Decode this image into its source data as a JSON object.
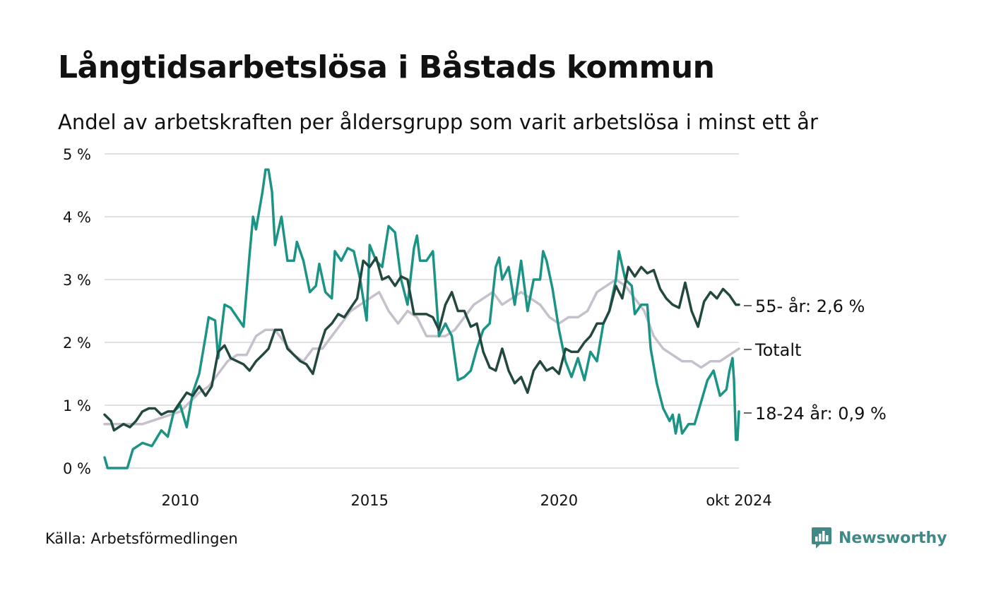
{
  "header": {
    "title": "Långtidsarbetslösa i Båstads kommun",
    "subtitle": "Andel av arbetskraften per åldersgrupp som varit arbetslösa i minst ett år"
  },
  "footer": {
    "source": "Källa: Arbetsförmedlingen",
    "brand": "Newsworthy"
  },
  "chart_data": {
    "type": "line",
    "title": "Långtidsarbetslösa i Båstads kommun",
    "subtitle": "Andel av arbetskraften per åldersgrupp som varit arbetslösa i minst ett år",
    "xlabel": "",
    "ylabel": "",
    "xlim": [
      2008.0,
      2024.75
    ],
    "ylim": [
      0,
      5
    ],
    "y_ticks": [
      {
        "value": 0,
        "label": "0 %"
      },
      {
        "value": 1,
        "label": "1 %"
      },
      {
        "value": 2,
        "label": "2 %"
      },
      {
        "value": 3,
        "label": "3 %"
      },
      {
        "value": 4,
        "label": "4 %"
      },
      {
        "value": 5,
        "label": "5 %"
      }
    ],
    "x_ticks": [
      {
        "value": 2010,
        "label": "2010"
      },
      {
        "value": 2015,
        "label": "2015"
      },
      {
        "value": 2020,
        "label": "2020"
      },
      {
        "value": 2024.75,
        "label": "okt 2024"
      }
    ],
    "grid": true,
    "series": [
      {
        "key": "totalt",
        "name": "Totalt",
        "end_label": "Totalt",
        "color": "#c5c0cc",
        "points": [
          [
            2008.0,
            0.7
          ],
          [
            2008.5,
            0.7
          ],
          [
            2009.0,
            0.7
          ],
          [
            2009.5,
            0.8
          ],
          [
            2010.0,
            0.9
          ],
          [
            2010.5,
            1.2
          ],
          [
            2010.75,
            1.3
          ],
          [
            2011.0,
            1.5
          ],
          [
            2011.25,
            1.7
          ],
          [
            2011.5,
            1.8
          ],
          [
            2011.75,
            1.8
          ],
          [
            2012.0,
            2.1
          ],
          [
            2012.25,
            2.2
          ],
          [
            2012.5,
            2.2
          ],
          [
            2012.75,
            2.0
          ],
          [
            2013.0,
            1.8
          ],
          [
            2013.25,
            1.7
          ],
          [
            2013.5,
            1.9
          ],
          [
            2013.75,
            1.9
          ],
          [
            2014.0,
            2.1
          ],
          [
            2014.25,
            2.3
          ],
          [
            2014.5,
            2.5
          ],
          [
            2014.75,
            2.6
          ],
          [
            2015.0,
            2.7
          ],
          [
            2015.25,
            2.8
          ],
          [
            2015.5,
            2.5
          ],
          [
            2015.75,
            2.3
          ],
          [
            2016.0,
            2.5
          ],
          [
            2016.25,
            2.4
          ],
          [
            2016.5,
            2.1
          ],
          [
            2016.75,
            2.1
          ],
          [
            2017.0,
            2.1
          ],
          [
            2017.25,
            2.2
          ],
          [
            2017.5,
            2.4
          ],
          [
            2017.75,
            2.6
          ],
          [
            2018.0,
            2.7
          ],
          [
            2018.25,
            2.8
          ],
          [
            2018.5,
            2.6
          ],
          [
            2018.75,
            2.7
          ],
          [
            2019.0,
            2.8
          ],
          [
            2019.25,
            2.7
          ],
          [
            2019.5,
            2.6
          ],
          [
            2019.75,
            2.4
          ],
          [
            2020.0,
            2.3
          ],
          [
            2020.25,
            2.4
          ],
          [
            2020.5,
            2.4
          ],
          [
            2020.75,
            2.5
          ],
          [
            2021.0,
            2.8
          ],
          [
            2021.25,
            2.9
          ],
          [
            2021.5,
            3.0
          ],
          [
            2021.75,
            2.9
          ],
          [
            2022.0,
            2.7
          ],
          [
            2022.25,
            2.5
          ],
          [
            2022.5,
            2.1
          ],
          [
            2022.75,
            1.9
          ],
          [
            2023.0,
            1.8
          ],
          [
            2023.25,
            1.7
          ],
          [
            2023.5,
            1.7
          ],
          [
            2023.75,
            1.6
          ],
          [
            2024.0,
            1.7
          ],
          [
            2024.25,
            1.7
          ],
          [
            2024.5,
            1.8
          ],
          [
            2024.75,
            1.9
          ]
        ]
      },
      {
        "key": "age_18_24",
        "name": "18-24 år",
        "end_label": "18-24 år: 0,9 %",
        "color": "#1b9485",
        "points": [
          [
            2008.0,
            0.17
          ],
          [
            2008.08,
            0.0
          ],
          [
            2008.5,
            0.0
          ],
          [
            2008.6,
            0.0
          ],
          [
            2008.75,
            0.3
          ],
          [
            2009.0,
            0.4
          ],
          [
            2009.25,
            0.35
          ],
          [
            2009.5,
            0.6
          ],
          [
            2009.67,
            0.5
          ],
          [
            2009.83,
            0.9
          ],
          [
            2010.0,
            1.0
          ],
          [
            2010.17,
            0.65
          ],
          [
            2010.33,
            1.2
          ],
          [
            2010.5,
            1.5
          ],
          [
            2010.67,
            2.1
          ],
          [
            2010.75,
            2.4
          ],
          [
            2010.92,
            2.35
          ],
          [
            2011.0,
            1.75
          ],
          [
            2011.17,
            2.6
          ],
          [
            2011.33,
            2.55
          ],
          [
            2011.5,
            2.4
          ],
          [
            2011.67,
            2.25
          ],
          [
            2011.83,
            3.4
          ],
          [
            2011.92,
            4.0
          ],
          [
            2012.0,
            3.8
          ],
          [
            2012.17,
            4.4
          ],
          [
            2012.25,
            4.75
          ],
          [
            2012.33,
            4.75
          ],
          [
            2012.42,
            4.4
          ],
          [
            2012.5,
            3.55
          ],
          [
            2012.67,
            4.0
          ],
          [
            2012.83,
            3.3
          ],
          [
            2013.0,
            3.3
          ],
          [
            2013.08,
            3.6
          ],
          [
            2013.25,
            3.3
          ],
          [
            2013.42,
            2.8
          ],
          [
            2013.58,
            2.9
          ],
          [
            2013.67,
            3.25
          ],
          [
            2013.83,
            2.8
          ],
          [
            2014.0,
            2.7
          ],
          [
            2014.08,
            3.45
          ],
          [
            2014.25,
            3.3
          ],
          [
            2014.42,
            3.5
          ],
          [
            2014.58,
            3.45
          ],
          [
            2014.75,
            3.0
          ],
          [
            2014.92,
            2.35
          ],
          [
            2015.0,
            3.55
          ],
          [
            2015.17,
            3.3
          ],
          [
            2015.33,
            3.2
          ],
          [
            2015.5,
            3.85
          ],
          [
            2015.67,
            3.75
          ],
          [
            2015.83,
            3.0
          ],
          [
            2016.0,
            2.6
          ],
          [
            2016.17,
            3.5
          ],
          [
            2016.25,
            3.7
          ],
          [
            2016.33,
            3.3
          ],
          [
            2016.5,
            3.3
          ],
          [
            2016.67,
            3.45
          ],
          [
            2016.83,
            2.1
          ],
          [
            2017.0,
            2.3
          ],
          [
            2017.17,
            2.1
          ],
          [
            2017.33,
            1.4
          ],
          [
            2017.5,
            1.45
          ],
          [
            2017.67,
            1.55
          ],
          [
            2017.83,
            1.9
          ],
          [
            2018.0,
            2.2
          ],
          [
            2018.17,
            2.3
          ],
          [
            2018.33,
            3.2
          ],
          [
            2018.42,
            3.35
          ],
          [
            2018.5,
            3.0
          ],
          [
            2018.67,
            3.2
          ],
          [
            2018.83,
            2.6
          ],
          [
            2019.0,
            3.3
          ],
          [
            2019.17,
            2.5
          ],
          [
            2019.33,
            3.0
          ],
          [
            2019.5,
            3.0
          ],
          [
            2019.58,
            3.45
          ],
          [
            2019.67,
            3.3
          ],
          [
            2019.83,
            2.85
          ],
          [
            2020.0,
            2.2
          ],
          [
            2020.17,
            1.7
          ],
          [
            2020.33,
            1.45
          ],
          [
            2020.5,
            1.75
          ],
          [
            2020.67,
            1.4
          ],
          [
            2020.83,
            1.85
          ],
          [
            2021.0,
            1.7
          ],
          [
            2021.17,
            2.3
          ],
          [
            2021.33,
            2.5
          ],
          [
            2021.5,
            3.0
          ],
          [
            2021.58,
            3.45
          ],
          [
            2021.75,
            3.0
          ],
          [
            2021.92,
            2.9
          ],
          [
            2022.0,
            2.45
          ],
          [
            2022.17,
            2.6
          ],
          [
            2022.33,
            2.6
          ],
          [
            2022.42,
            1.9
          ],
          [
            2022.58,
            1.35
          ],
          [
            2022.75,
            0.95
          ],
          [
            2022.92,
            0.75
          ],
          [
            2023.0,
            0.85
          ],
          [
            2023.08,
            0.55
          ],
          [
            2023.17,
            0.85
          ],
          [
            2023.25,
            0.55
          ],
          [
            2023.42,
            0.7
          ],
          [
            2023.58,
            0.7
          ],
          [
            2023.75,
            1.05
          ],
          [
            2023.92,
            1.4
          ],
          [
            2024.08,
            1.55
          ],
          [
            2024.25,
            1.15
          ],
          [
            2024.42,
            1.25
          ],
          [
            2024.5,
            1.55
          ],
          [
            2024.58,
            1.75
          ],
          [
            2024.62,
            1.4
          ],
          [
            2024.67,
            0.45
          ],
          [
            2024.71,
            0.45
          ],
          [
            2024.75,
            0.9
          ]
        ]
      },
      {
        "key": "age_55",
        "name": "55- år",
        "end_label": "55- år: 2,6 %",
        "color": "#22483f",
        "points": [
          [
            2008.0,
            0.85
          ],
          [
            2008.17,
            0.75
          ],
          [
            2008.25,
            0.6
          ],
          [
            2008.5,
            0.7
          ],
          [
            2008.67,
            0.65
          ],
          [
            2008.83,
            0.75
          ],
          [
            2009.0,
            0.9
          ],
          [
            2009.17,
            0.95
          ],
          [
            2009.33,
            0.95
          ],
          [
            2009.5,
            0.85
          ],
          [
            2009.67,
            0.9
          ],
          [
            2009.83,
            0.9
          ],
          [
            2010.0,
            1.05
          ],
          [
            2010.17,
            1.2
          ],
          [
            2010.33,
            1.15
          ],
          [
            2010.5,
            1.3
          ],
          [
            2010.67,
            1.15
          ],
          [
            2010.83,
            1.3
          ],
          [
            2011.0,
            1.85
          ],
          [
            2011.17,
            1.95
          ],
          [
            2011.33,
            1.75
          ],
          [
            2011.5,
            1.7
          ],
          [
            2011.67,
            1.65
          ],
          [
            2011.83,
            1.55
          ],
          [
            2012.0,
            1.7
          ],
          [
            2012.17,
            1.8
          ],
          [
            2012.33,
            1.9
          ],
          [
            2012.5,
            2.2
          ],
          [
            2012.67,
            2.2
          ],
          [
            2012.83,
            1.9
          ],
          [
            2013.0,
            1.8
          ],
          [
            2013.17,
            1.7
          ],
          [
            2013.33,
            1.65
          ],
          [
            2013.5,
            1.5
          ],
          [
            2013.67,
            1.9
          ],
          [
            2013.83,
            2.2
          ],
          [
            2014.0,
            2.3
          ],
          [
            2014.17,
            2.45
          ],
          [
            2014.33,
            2.4
          ],
          [
            2014.5,
            2.55
          ],
          [
            2014.67,
            2.7
          ],
          [
            2014.83,
            3.3
          ],
          [
            2015.0,
            3.2
          ],
          [
            2015.17,
            3.35
          ],
          [
            2015.33,
            3.0
          ],
          [
            2015.5,
            3.05
          ],
          [
            2015.67,
            2.9
          ],
          [
            2015.83,
            3.05
          ],
          [
            2016.0,
            3.0
          ],
          [
            2016.17,
            2.45
          ],
          [
            2016.33,
            2.45
          ],
          [
            2016.5,
            2.45
          ],
          [
            2016.67,
            2.4
          ],
          [
            2016.83,
            2.2
          ],
          [
            2017.0,
            2.6
          ],
          [
            2017.17,
            2.8
          ],
          [
            2017.33,
            2.5
          ],
          [
            2017.5,
            2.5
          ],
          [
            2017.67,
            2.25
          ],
          [
            2017.83,
            2.3
          ],
          [
            2018.0,
            1.85
          ],
          [
            2018.17,
            1.6
          ],
          [
            2018.33,
            1.55
          ],
          [
            2018.5,
            1.9
          ],
          [
            2018.67,
            1.55
          ],
          [
            2018.83,
            1.35
          ],
          [
            2019.0,
            1.45
          ],
          [
            2019.17,
            1.2
          ],
          [
            2019.33,
            1.55
          ],
          [
            2019.5,
            1.7
          ],
          [
            2019.67,
            1.55
          ],
          [
            2019.83,
            1.6
          ],
          [
            2020.0,
            1.5
          ],
          [
            2020.17,
            1.9
          ],
          [
            2020.33,
            1.85
          ],
          [
            2020.5,
            1.85
          ],
          [
            2020.67,
            2.0
          ],
          [
            2020.83,
            2.1
          ],
          [
            2021.0,
            2.3
          ],
          [
            2021.17,
            2.3
          ],
          [
            2021.33,
            2.5
          ],
          [
            2021.5,
            2.9
          ],
          [
            2021.67,
            2.7
          ],
          [
            2021.83,
            3.2
          ],
          [
            2022.0,
            3.05
          ],
          [
            2022.17,
            3.2
          ],
          [
            2022.33,
            3.1
          ],
          [
            2022.5,
            3.15
          ],
          [
            2022.67,
            2.85
          ],
          [
            2022.83,
            2.7
          ],
          [
            2023.0,
            2.6
          ],
          [
            2023.17,
            2.55
          ],
          [
            2023.33,
            2.95
          ],
          [
            2023.5,
            2.5
          ],
          [
            2023.67,
            2.25
          ],
          [
            2023.83,
            2.65
          ],
          [
            2024.0,
            2.8
          ],
          [
            2024.17,
            2.7
          ],
          [
            2024.33,
            2.85
          ],
          [
            2024.5,
            2.75
          ],
          [
            2024.67,
            2.6
          ],
          [
            2024.75,
            2.6
          ]
        ]
      }
    ]
  }
}
